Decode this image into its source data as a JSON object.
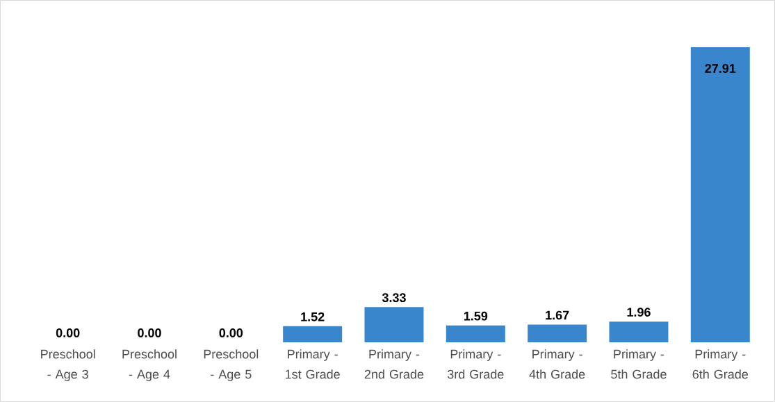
{
  "chart_data": {
    "type": "bar",
    "categories": [
      "Preschool - Age 3",
      "Preschool - Age 4",
      "Preschool - Age 5",
      "Primary - 1st Grade",
      "Primary - 2nd Grade",
      "Primary - 3rd Grade",
      "Primary - 4th Grade",
      "Primary - 5th Grade",
      "Primary - 6th Grade"
    ],
    "values": [
      0.0,
      0.0,
      0.0,
      1.52,
      3.33,
      1.59,
      1.67,
      1.96,
      27.91
    ],
    "value_labels": [
      "0.00",
      "0.00",
      "0.00",
      "1.52",
      "3.33",
      "1.59",
      "1.67",
      "1.96",
      "27.91"
    ],
    "color": "#3a86cc"
  }
}
